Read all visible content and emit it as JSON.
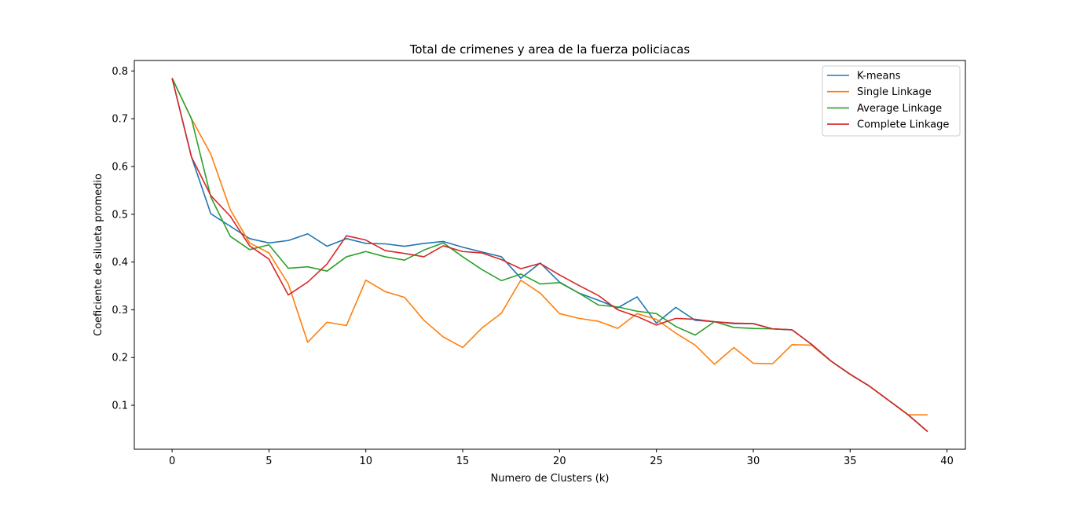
{
  "chart_data": {
    "type": "line",
    "title": "Total de crimenes y area de la fuerza policiacas",
    "xlabel": "Numero de Clusters (k)",
    "ylabel": "Coeficiente de silueta promedio",
    "xlim": [
      -1.95,
      40.95
    ],
    "ylim": [
      0.008,
      0.822
    ],
    "xticks": [
      0,
      5,
      10,
      15,
      20,
      25,
      30,
      35,
      40
    ],
    "yticks": [
      0.1,
      0.2,
      0.3,
      0.4,
      0.5,
      0.6,
      0.7,
      0.8
    ],
    "xtick_labels": [
      "0",
      "5",
      "10",
      "15",
      "20",
      "25",
      "30",
      "35",
      "40"
    ],
    "ytick_labels": [
      "0.1",
      "0.2",
      "0.3",
      "0.4",
      "0.5",
      "0.6",
      "0.7",
      "0.8"
    ],
    "grid": false,
    "legend_position": "top-right",
    "x": [
      0,
      1,
      2,
      3,
      4,
      5,
      6,
      7,
      8,
      9,
      10,
      11,
      12,
      13,
      14,
      15,
      16,
      17,
      18,
      19,
      20,
      21,
      22,
      23,
      24,
      25,
      26,
      27,
      28,
      29,
      30,
      31,
      32,
      33,
      34,
      35,
      36,
      37,
      38,
      39
    ],
    "series": [
      {
        "name": "K-means",
        "color": "#1f77b4",
        "values": [
          0.785,
          0.62,
          0.501,
          0.475,
          0.449,
          0.44,
          0.445,
          0.459,
          0.433,
          0.449,
          0.439,
          0.438,
          0.433,
          0.439,
          0.443,
          0.431,
          0.421,
          0.411,
          0.366,
          0.398,
          0.358,
          0.335,
          0.32,
          0.304,
          0.327,
          0.272,
          0.305,
          0.278,
          0.275,
          0.271,
          0.271,
          0.26,
          0.258,
          0.228,
          0.193,
          0.165,
          0.14,
          0.11,
          0.08,
          0.045
        ]
      },
      {
        "name": "Single Linkage",
        "color": "#ff7f0e",
        "values": [
          0.785,
          0.7,
          0.626,
          0.51,
          0.44,
          0.419,
          0.354,
          0.232,
          0.274,
          0.267,
          0.362,
          0.338,
          0.326,
          0.278,
          0.243,
          0.221,
          0.262,
          0.293,
          0.362,
          0.335,
          0.292,
          0.282,
          0.276,
          0.261,
          0.292,
          0.28,
          0.251,
          0.226,
          0.186,
          0.221,
          0.188,
          0.187,
          0.227,
          0.226,
          0.193,
          0.165,
          0.14,
          0.11,
          0.08,
          0.08
        ]
      },
      {
        "name": "Average Linkage",
        "color": "#2ca02c",
        "values": [
          0.785,
          0.7,
          0.536,
          0.454,
          0.426,
          0.436,
          0.387,
          0.39,
          0.381,
          0.411,
          0.422,
          0.411,
          0.404,
          0.425,
          0.44,
          0.411,
          0.384,
          0.361,
          0.375,
          0.354,
          0.357,
          0.335,
          0.31,
          0.306,
          0.297,
          0.292,
          0.265,
          0.247,
          0.275,
          0.263,
          0.261,
          0.26,
          0.258,
          0.228,
          0.193,
          0.165,
          0.14,
          0.11,
          0.08,
          0.045
        ]
      },
      {
        "name": "Complete Linkage",
        "color": "#d62728",
        "values": [
          0.785,
          0.62,
          0.539,
          0.496,
          0.434,
          0.406,
          0.331,
          0.358,
          0.396,
          0.455,
          0.446,
          0.424,
          0.418,
          0.411,
          0.434,
          0.422,
          0.419,
          0.405,
          0.386,
          0.397,
          0.373,
          0.351,
          0.33,
          0.3,
          0.286,
          0.268,
          0.282,
          0.28,
          0.275,
          0.272,
          0.271,
          0.26,
          0.258,
          0.228,
          0.193,
          0.165,
          0.14,
          0.11,
          0.08,
          0.045
        ]
      }
    ]
  }
}
